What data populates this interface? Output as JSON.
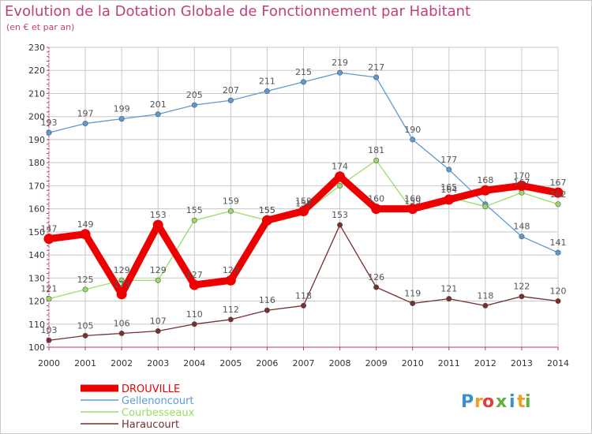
{
  "title": "Evolution de la Dotation Globale de Fonctionnement par Habitant",
  "subtitle": "(en € et par an)",
  "brand": {
    "text": "Proxiti",
    "letters": [
      "P",
      "r",
      "o",
      "x",
      "i",
      "t",
      "i"
    ]
  },
  "colors": {
    "title": "#c0407a",
    "DROUVILLE": "#ee0000",
    "Gellenoncourt": "#5b9bd5",
    "Courbesseaux": "#99dd66",
    "Haraucourt": "#7a2e2e",
    "axis": "#cc3366",
    "grid": "#c8c8c8"
  },
  "chart_data": {
    "type": "line",
    "x": [
      2000,
      2001,
      2002,
      2003,
      2004,
      2005,
      2006,
      2007,
      2008,
      2009,
      2010,
      2011,
      2012,
      2013,
      2014
    ],
    "xlabel": "",
    "ylabel": "",
    "ylim": [
      100,
      230
    ],
    "yticks": [
      100,
      110,
      120,
      130,
      140,
      150,
      160,
      170,
      180,
      190,
      200,
      210,
      220,
      230
    ],
    "grid": true,
    "legend_position": "bottom-left",
    "series": [
      {
        "name": "Gellenoncourt",
        "values": [
          193,
          197,
          199,
          201,
          205,
          207,
          211,
          215,
          219,
          217,
          190,
          177,
          162,
          148,
          141
        ],
        "labels": [
          "193",
          "197",
          "199",
          "201",
          "205",
          "207",
          "211",
          "215",
          "219",
          "217",
          "190",
          "177",
          "",
          "148",
          "141"
        ]
      },
      {
        "name": "Courbesseaux",
        "values": [
          121,
          125,
          129,
          129,
          155,
          159,
          155,
          158,
          170,
          181,
          159,
          165,
          161,
          167,
          162
        ],
        "labels": [
          "121",
          "125",
          "129",
          "129",
          "155",
          "159",
          "155",
          "158",
          "",
          "181",
          "159",
          "165",
          "",
          "167",
          "162"
        ]
      },
      {
        "name": "Haraucourt",
        "values": [
          103,
          105,
          106,
          107,
          110,
          112,
          116,
          118,
          153,
          126,
          119,
          121,
          118,
          122,
          120
        ],
        "labels": [
          "103",
          "105",
          "106",
          "107",
          "110",
          "112",
          "116",
          "118",
          "153",
          "126",
          "119",
          "121",
          "118",
          "122",
          "120"
        ]
      },
      {
        "name": "DROUVILLE",
        "values": [
          147,
          149,
          123,
          153,
          127,
          129,
          155,
          159,
          174,
          160,
          160,
          164,
          168,
          170,
          167
        ],
        "labels": [
          "147",
          "149",
          "123",
          "153",
          "127",
          "129",
          "155",
          "159",
          "174",
          "160",
          "160",
          "164",
          "168",
          "170",
          "167"
        ]
      }
    ]
  }
}
